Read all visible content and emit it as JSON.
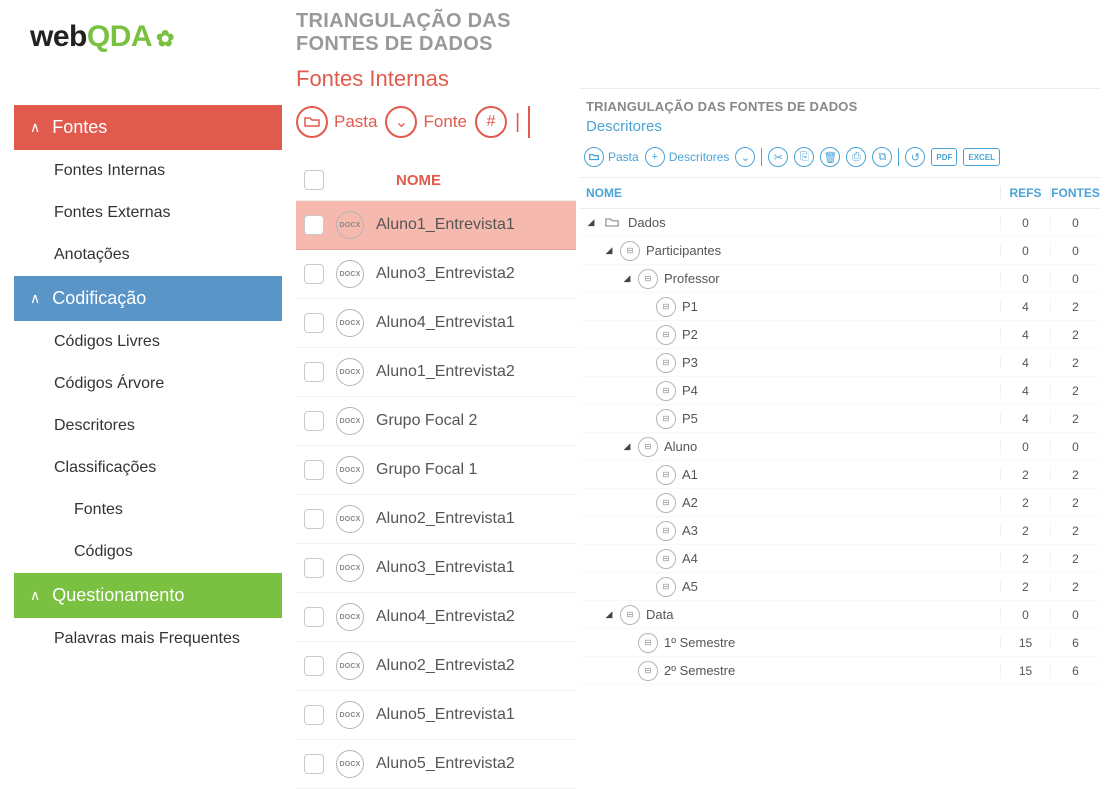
{
  "logo": {
    "part1": "web",
    "part2": "QDA"
  },
  "sidebar": {
    "sections": [
      {
        "label": "Fontes",
        "color": "#e05b4d",
        "items": [
          {
            "label": "Fontes Internas"
          },
          {
            "label": "Fontes Externas"
          },
          {
            "label": "Anotações"
          }
        ]
      },
      {
        "label": "Codificação",
        "color": "#5a95c7",
        "items": [
          {
            "label": "Códigos Livres"
          },
          {
            "label": "Códigos Árvore"
          },
          {
            "label": "Descritores"
          },
          {
            "label": "Classificações"
          },
          {
            "label": "Fontes",
            "indent": true
          },
          {
            "label": "Códigos",
            "indent": true
          }
        ]
      },
      {
        "label": "Questionamento",
        "color": "#7ac142",
        "items": [
          {
            "label": "Palavras mais Frequentes"
          }
        ]
      }
    ]
  },
  "mid": {
    "title": "TRIANGULAÇÃO DAS FONTES DE DADOS",
    "subtitle": "Fontes Internas",
    "toolbar": {
      "pasta": "Pasta",
      "fonte": "Fonte"
    },
    "header": {
      "name": "NOME"
    },
    "rows": [
      {
        "name": "Aluno1_Entrevista1",
        "selected": true
      },
      {
        "name": "Aluno3_Entrevista2"
      },
      {
        "name": "Aluno4_Entrevista1"
      },
      {
        "name": "Aluno1_Entrevista2"
      },
      {
        "name": "Grupo Focal 2"
      },
      {
        "name": "Grupo Focal 1"
      },
      {
        "name": "Aluno2_Entrevista1"
      },
      {
        "name": "Aluno3_Entrevista1"
      },
      {
        "name": "Aluno4_Entrevista2"
      },
      {
        "name": "Aluno2_Entrevista2"
      },
      {
        "name": "Aluno5_Entrevista1"
      },
      {
        "name": "Aluno5_Entrevista2"
      }
    ],
    "docx_label": "DOCX"
  },
  "right": {
    "title": "TRIANGULAÇÃO DAS FONTES DE DADOS",
    "subtitle": "Descritores",
    "toolbar": {
      "pasta": "Pasta",
      "descritores": "Descritores",
      "pdf": "PDF",
      "excel": "EXCEL"
    },
    "header": {
      "name": "NOME",
      "refs": "REFS",
      "fontes": "FONTES"
    },
    "tree": [
      {
        "label": "Dados",
        "level": 0,
        "caret": true,
        "icon": "folder",
        "refs": 0,
        "fontes": 0
      },
      {
        "label": "Participantes",
        "level": 1,
        "caret": true,
        "icon": "node",
        "refs": 0,
        "fontes": 0
      },
      {
        "label": "Professor",
        "level": 2,
        "caret": true,
        "icon": "node",
        "refs": 0,
        "fontes": 0
      },
      {
        "label": "P1",
        "level": 3,
        "icon": "node",
        "refs": 4,
        "fontes": 2
      },
      {
        "label": "P2",
        "level": 3,
        "icon": "node",
        "refs": 4,
        "fontes": 2
      },
      {
        "label": "P3",
        "level": 3,
        "icon": "node",
        "refs": 4,
        "fontes": 2
      },
      {
        "label": "P4",
        "level": 3,
        "icon": "node",
        "refs": 4,
        "fontes": 2
      },
      {
        "label": "P5",
        "level": 3,
        "icon": "node",
        "refs": 4,
        "fontes": 2
      },
      {
        "label": "Aluno",
        "level": 2,
        "caret": true,
        "icon": "node",
        "refs": 0,
        "fontes": 0
      },
      {
        "label": "A1",
        "level": 3,
        "icon": "node",
        "refs": 2,
        "fontes": 2
      },
      {
        "label": "A2",
        "level": 3,
        "icon": "node",
        "refs": 2,
        "fontes": 2
      },
      {
        "label": "A3",
        "level": 3,
        "icon": "node",
        "refs": 2,
        "fontes": 2
      },
      {
        "label": "A4",
        "level": 3,
        "icon": "node",
        "refs": 2,
        "fontes": 2
      },
      {
        "label": "A5",
        "level": 3,
        "icon": "node",
        "refs": 2,
        "fontes": 2
      },
      {
        "label": "Data",
        "level": 1,
        "caret": true,
        "icon": "node",
        "refs": 0,
        "fontes": 0
      },
      {
        "label": "1º Semestre",
        "level": 2,
        "icon": "node",
        "refs": 15,
        "fontes": 6
      },
      {
        "label": "2º Semestre",
        "level": 2,
        "icon": "node",
        "refs": 15,
        "fontes": 6
      }
    ]
  },
  "colors": {
    "red": "#e05b4d",
    "blue": "#5a95c7",
    "green": "#7ac142",
    "link_blue": "#4aa3d6"
  }
}
